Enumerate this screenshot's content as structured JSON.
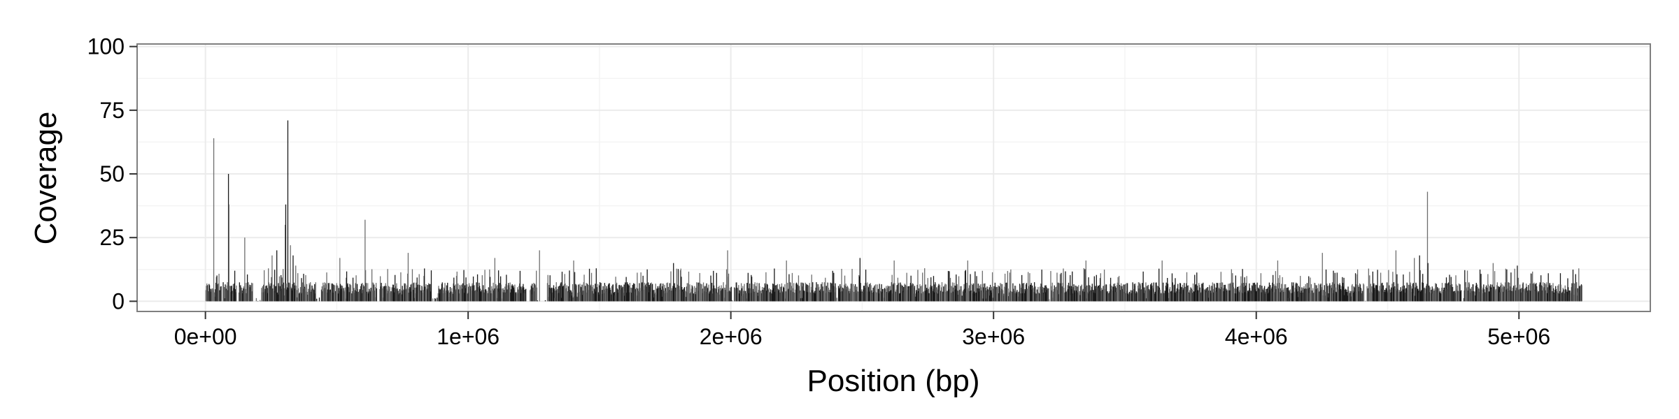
{
  "chart_data": {
    "type": "bar",
    "title": "",
    "xlabel": "Position (bp)",
    "ylabel": "Coverage",
    "xlim": [
      -260000,
      5500000
    ],
    "ylim": [
      -4,
      101
    ],
    "x_ticks": [
      {
        "value": 0,
        "label": "0e+00"
      },
      {
        "value": 1000000,
        "label": "1e+06"
      },
      {
        "value": 2000000,
        "label": "2e+06"
      },
      {
        "value": 3000000,
        "label": "3e+06"
      },
      {
        "value": 4000000,
        "label": "4e+06"
      },
      {
        "value": 5000000,
        "label": "5e+06"
      }
    ],
    "y_ticks": [
      {
        "value": 0,
        "label": "0"
      },
      {
        "value": 25,
        "label": "25"
      },
      {
        "value": 50,
        "label": "50"
      },
      {
        "value": 75,
        "label": "75"
      },
      {
        "value": 100,
        "label": "100"
      }
    ],
    "grid": true,
    "bar_color": "#1a1a1a",
    "bar_color_alt": "#6e6e6e",
    "panel_border_color": "#7f7f7f",
    "grid_color": "#ebebeb",
    "bin_width_bp": 2000,
    "x_range_bp": [
      0,
      5240000
    ],
    "baseline_level": 6,
    "gaps_bp": [
      [
        60000,
        66000
      ],
      [
        118000,
        126000
      ],
      [
        180000,
        212000
      ],
      [
        420000,
        440000
      ],
      [
        652000,
        662000
      ],
      [
        860000,
        884000
      ],
      [
        1220000,
        1234000
      ],
      [
        1262000,
        1300000
      ],
      [
        2002000,
        2012000
      ],
      [
        2400000,
        2408000
      ],
      [
        3210000,
        3216000
      ],
      [
        4410000,
        4420000
      ],
      [
        4780000,
        4790000
      ]
    ],
    "peaks": [
      {
        "x": 30000,
        "y": 64
      },
      {
        "x": 48000,
        "y": 7
      },
      {
        "x": 86000,
        "y": 50
      },
      {
        "x": 88000,
        "y": 38
      },
      {
        "x": 110000,
        "y": 12
      },
      {
        "x": 148000,
        "y": 25
      },
      {
        "x": 252000,
        "y": 18
      },
      {
        "x": 270000,
        "y": 20
      },
      {
        "x": 302000,
        "y": 30
      },
      {
        "x": 304000,
        "y": 38
      },
      {
        "x": 312000,
        "y": 71
      },
      {
        "x": 322000,
        "y": 22
      },
      {
        "x": 332000,
        "y": 18
      },
      {
        "x": 342000,
        "y": 14
      },
      {
        "x": 510000,
        "y": 17
      },
      {
        "x": 606000,
        "y": 32
      },
      {
        "x": 770000,
        "y": 19
      },
      {
        "x": 1100000,
        "y": 17
      },
      {
        "x": 1270000,
        "y": 20
      },
      {
        "x": 1400000,
        "y": 16
      },
      {
        "x": 1780000,
        "y": 15
      },
      {
        "x": 1986000,
        "y": 20
      },
      {
        "x": 2210000,
        "y": 16
      },
      {
        "x": 2490000,
        "y": 17
      },
      {
        "x": 2620000,
        "y": 16
      },
      {
        "x": 2900000,
        "y": 16
      },
      {
        "x": 3350000,
        "y": 16
      },
      {
        "x": 3640000,
        "y": 16
      },
      {
        "x": 4080000,
        "y": 16
      },
      {
        "x": 4250000,
        "y": 19
      },
      {
        "x": 4530000,
        "y": 20
      },
      {
        "x": 4600000,
        "y": 17
      },
      {
        "x": 4620000,
        "y": 18
      },
      {
        "x": 4650000,
        "y": 43
      },
      {
        "x": 4652000,
        "y": 15
      },
      {
        "x": 4900000,
        "y": 15
      },
      {
        "x": 4992000,
        "y": 14
      },
      {
        "x": 5110000,
        "y": 11
      },
      {
        "x": 5210000,
        "y": 7
      }
    ]
  }
}
